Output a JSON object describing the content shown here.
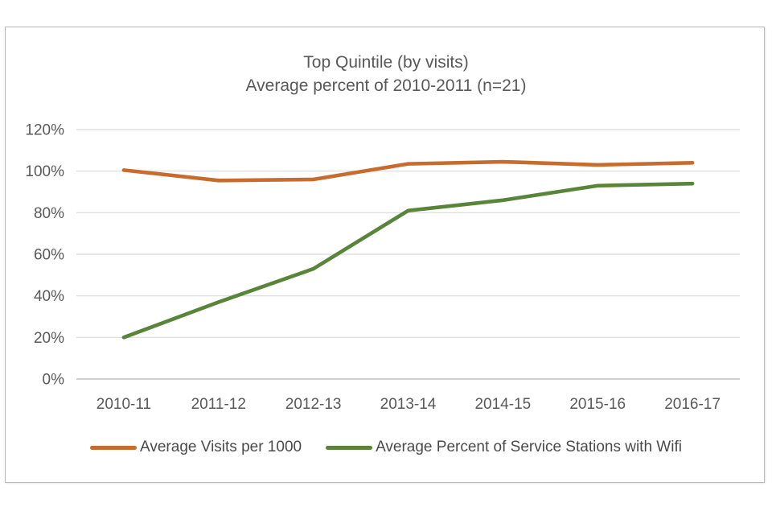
{
  "chart_data": {
    "type": "line",
    "title": "Top Quintile (by visits)",
    "subtitle": "Average percent of 2010-2011 (n=21)",
    "categories": [
      "2010-11",
      "2011-12",
      "2012-13",
      "2013-14",
      "2014-15",
      "2015-16",
      "2016-17"
    ],
    "series": [
      {
        "name": "Average Visits per 1000",
        "color": "#C76B2E",
        "values": [
          100.5,
          95.5,
          96,
          103.5,
          104.5,
          103,
          104
        ]
      },
      {
        "name": "Average Percent of Service Stations with Wifi",
        "color": "#588539",
        "values": [
          20,
          37,
          53,
          81,
          86,
          93,
          94
        ]
      }
    ],
    "y_axis": {
      "min": 0,
      "max": 120,
      "step": 20,
      "tick_labels": [
        "0%",
        "20%",
        "40%",
        "60%",
        "80%",
        "100%",
        "120%"
      ],
      "format": "percent"
    },
    "x_axis": {
      "label": ""
    },
    "grid": "horizontal",
    "legend_position": "bottom",
    "colors": {
      "gridline": "#d9d9d9",
      "axis_line": "#bfbfbf",
      "tick_text": "#595959",
      "title_text": "#595959",
      "legend_text": "#4a4a4a",
      "frame_border": "#b9b9b9"
    }
  }
}
